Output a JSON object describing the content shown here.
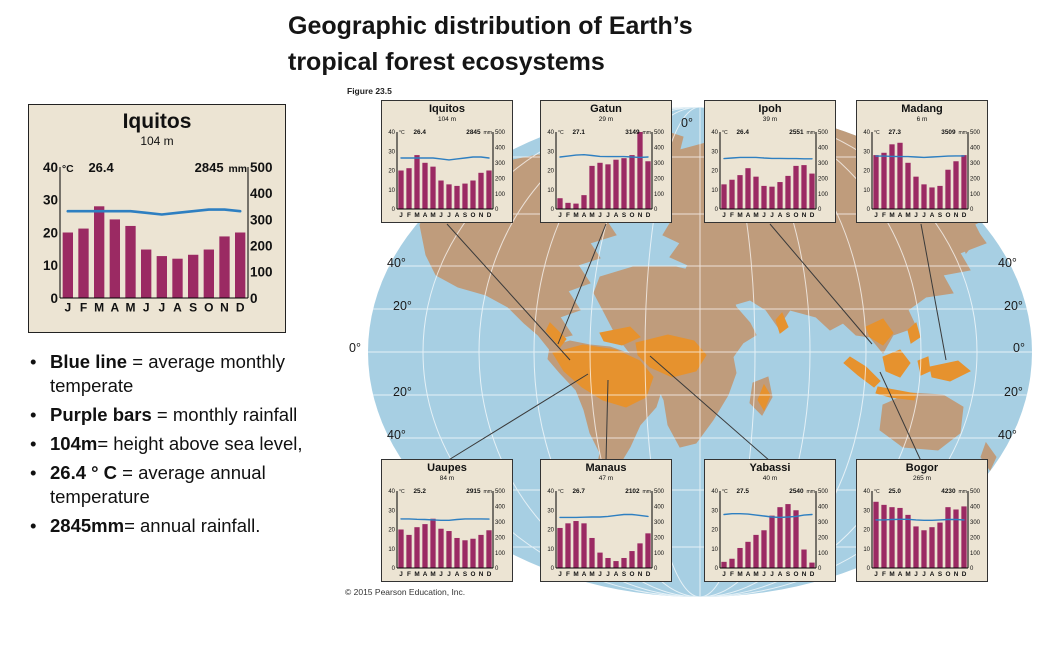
{
  "title": {
    "line1": "Geographic distribution of Earth’s",
    "line2": "tropical forest ecosystems"
  },
  "figure_label": "Figure 23.5",
  "copyright": "© 2015 Pearson Education, Inc.",
  "legend_bullets": [
    {
      "bold": "Blue line",
      "rest": " = average monthly temperate"
    },
    {
      "bold": "Purple bars",
      "rest": " = monthly rainfall"
    },
    {
      "bold": "104m",
      "rest": "= height above sea level,"
    },
    {
      "bold": "26.4 ° C",
      "rest": " = average annual temperature"
    },
    {
      "bold": "2845mm",
      "rest": "= annual rainfall."
    }
  ],
  "map": {
    "ocean_color": "#a7cfe3",
    "land_color": "#bf9c7c",
    "forest_color": "#e6922e",
    "graticule_color": "#ffffff",
    "lat_labels_left": [
      "40°",
      "20°",
      "0°",
      "20°",
      "40°"
    ],
    "lat_labels_right": [
      "40°",
      "20°",
      "0°",
      "20°",
      "40°"
    ],
    "top_label": "0°"
  },
  "axes": {
    "temp_unit": "°C",
    "rain_unit": "mm",
    "temp_ticks": [
      40,
      30,
      20,
      10,
      0
    ],
    "rain_ticks": [
      500,
      400,
      300,
      200,
      100,
      0
    ],
    "months": "JFMAMJJASOND"
  },
  "colors": {
    "bar": "#9b2a63",
    "temp_line": "#2e7fc1",
    "panel_bg": "#ece4d3"
  },
  "featured_station": "Iquitos",
  "chart_data": [
    {
      "type": "climograph",
      "station": "Iquitos",
      "elevation": "104 m",
      "avg_temp_c": 26.4,
      "annual_rain_mm": 2845,
      "rain_mm": [
        250,
        265,
        350,
        300,
        275,
        185,
        160,
        150,
        165,
        185,
        235,
        250
      ],
      "temp_c": [
        26.5,
        26.5,
        26.5,
        26.5,
        26.5,
        26.0,
        25.5,
        26.0,
        26.5,
        27.0,
        27.0,
        26.5
      ]
    },
    {
      "type": "climograph",
      "station": "Gatun",
      "elevation": "29 m",
      "avg_temp_c": 27.1,
      "annual_rain_mm": 3149,
      "rain_mm": [
        70,
        40,
        35,
        90,
        280,
        300,
        290,
        320,
        330,
        350,
        500,
        310
      ],
      "temp_c": [
        27.0,
        27.5,
        28.0,
        28.2,
        27.8,
        27.3,
        27.2,
        27.2,
        27.2,
        27.0,
        26.8,
        27.0
      ]
    },
    {
      "type": "climograph",
      "station": "Ipoh",
      "elevation": "39 m",
      "avg_temp_c": 26.4,
      "annual_rain_mm": 2551,
      "rain_mm": [
        160,
        190,
        220,
        265,
        210,
        150,
        145,
        175,
        215,
        280,
        285,
        230
      ],
      "temp_c": [
        26.2,
        26.5,
        26.8,
        26.8,
        26.8,
        26.5,
        26.3,
        26.3,
        26.2,
        26.2,
        26.1,
        26.1
      ]
    },
    {
      "type": "climograph",
      "station": "Madang",
      "elevation": "6 m",
      "avg_temp_c": 27.3,
      "annual_rain_mm": 3509,
      "rain_mm": [
        350,
        365,
        420,
        430,
        300,
        210,
        160,
        140,
        150,
        255,
        310,
        350
      ],
      "temp_c": [
        27.5,
        27.5,
        27.3,
        27.2,
        27.2,
        27.0,
        26.8,
        27.0,
        27.2,
        27.5,
        27.6,
        27.6
      ]
    },
    {
      "type": "climograph",
      "station": "Uaupes",
      "elevation": "84 m",
      "avg_temp_c": 25.2,
      "annual_rain_mm": 2915,
      "rain_mm": [
        250,
        215,
        265,
        285,
        320,
        255,
        240,
        195,
        180,
        190,
        215,
        245
      ],
      "temp_c": [
        25.5,
        25.5,
        25.3,
        25.2,
        25.0,
        24.8,
        24.8,
        25.2,
        25.5,
        25.5,
        25.5,
        25.4
      ]
    },
    {
      "type": "climograph",
      "station": "Manaus",
      "elevation": "47 m",
      "avg_temp_c": 26.7,
      "annual_rain_mm": 2102,
      "rain_mm": [
        260,
        290,
        305,
        290,
        195,
        100,
        65,
        45,
        65,
        110,
        160,
        225
      ],
      "temp_c": [
        26.3,
        26.3,
        26.3,
        26.4,
        26.5,
        26.5,
        26.8,
        27.3,
        27.8,
        27.8,
        27.3,
        26.8
      ]
    },
    {
      "type": "climograph",
      "station": "Yabassi",
      "elevation": "40 m",
      "avg_temp_c": 27.5,
      "annual_rain_mm": 2540,
      "rain_mm": [
        40,
        60,
        130,
        170,
        215,
        245,
        340,
        395,
        415,
        375,
        120,
        35
      ],
      "temp_c": [
        27.8,
        28.2,
        28.2,
        28.0,
        27.5,
        27.0,
        26.5,
        26.3,
        26.5,
        26.8,
        27.5,
        27.8
      ]
    },
    {
      "type": "climograph",
      "station": "Bogor",
      "elevation": "265 m",
      "avg_temp_c": 25.0,
      "annual_rain_mm": 4230,
      "rain_mm": [
        430,
        410,
        395,
        390,
        345,
        270,
        245,
        265,
        295,
        395,
        380,
        400
      ],
      "temp_c": [
        25.0,
        25.0,
        25.2,
        25.3,
        25.3,
        25.0,
        24.8,
        24.8,
        25.0,
        25.2,
        25.2,
        25.0
      ]
    }
  ]
}
